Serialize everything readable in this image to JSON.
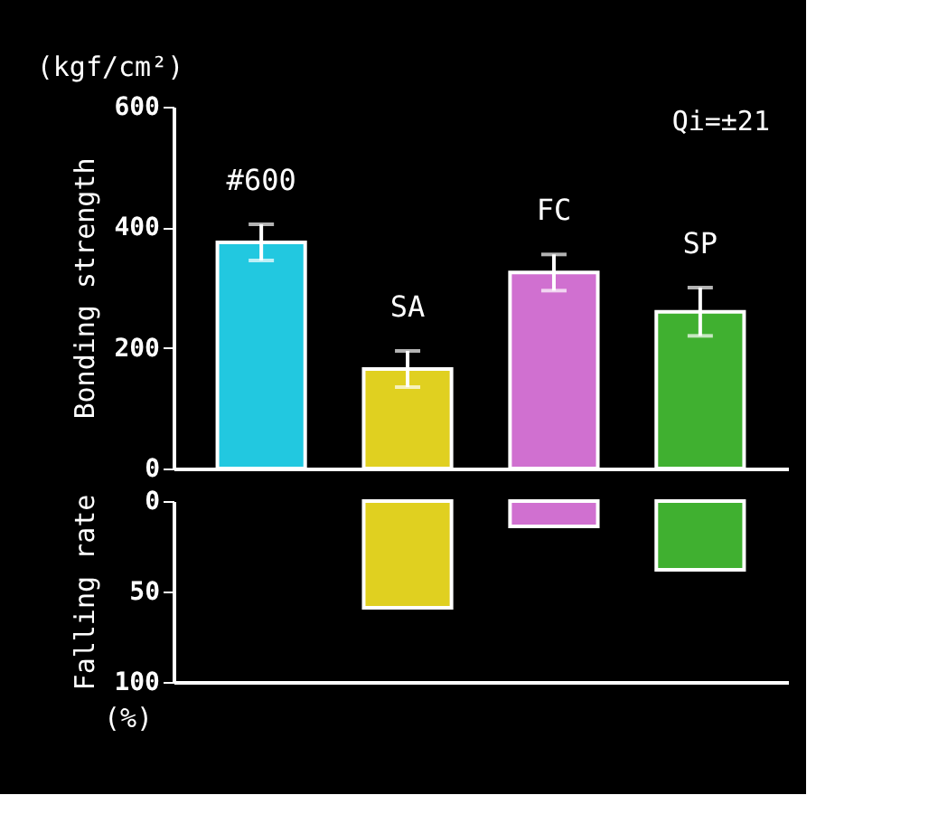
{
  "chart_data": [
    {
      "type": "bar",
      "ylabel": "Bonding strength",
      "annotations": [
        "(kgf/cm²)",
        "Qi=±21"
      ],
      "categories": [
        "#600",
        "SA",
        "FC",
        "SP"
      ],
      "values": [
        375,
        165,
        325,
        260
      ],
      "errors": [
        30,
        30,
        30,
        40
      ],
      "colors": [
        "#22c8e0",
        "#e0d020",
        "#d070d0",
        "#40b030"
      ],
      "ylim": [
        0,
        600
      ],
      "yticks": [
        0,
        200,
        400,
        600
      ],
      "grid": false
    },
    {
      "type": "bar",
      "ylabel": "Falling rate",
      "annotations": [
        "(%)"
      ],
      "categories": [
        null,
        null,
        null,
        null
      ],
      "values": [
        null,
        59,
        14,
        38
      ],
      "colors": [
        "#22c8e0",
        "#e0d020",
        "#d070d0",
        "#40b030"
      ],
      "ylim": [
        100,
        0
      ],
      "yticks": [
        0,
        50,
        100
      ],
      "grid": false,
      "tick_labels": "y"
    }
  ]
}
